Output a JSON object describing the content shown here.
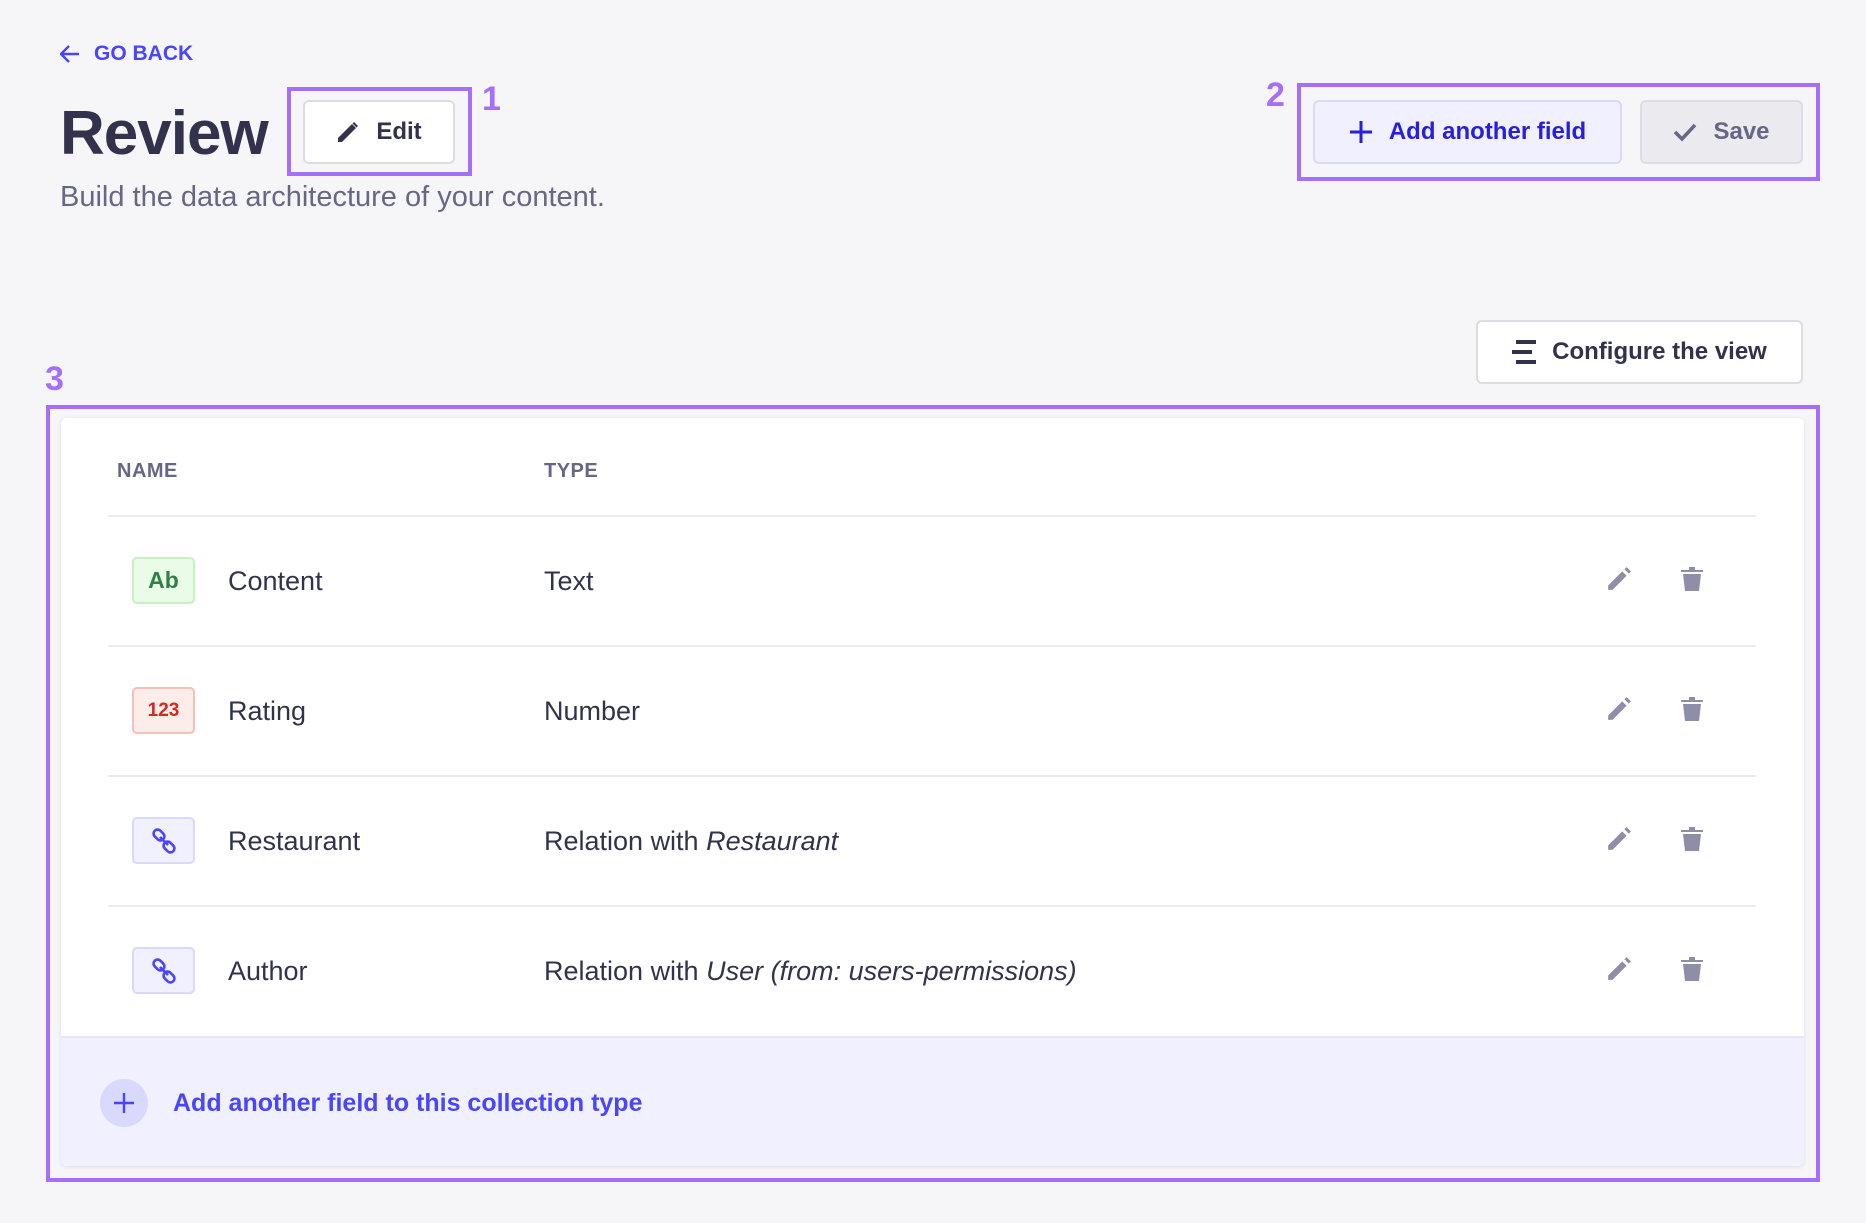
{
  "header": {
    "back_label": "GO BACK",
    "title": "Review",
    "edit_label": "Edit",
    "subtitle": "Build the data architecture of your content.",
    "add_field_label": "Add another field",
    "save_label": "Save",
    "configure_label": "Configure the view"
  },
  "annotations": [
    "1",
    "2",
    "3"
  ],
  "table": {
    "columns": [
      "NAME",
      "TYPE"
    ],
    "rows": [
      {
        "badge": "Ab",
        "badge_kind": "text",
        "name": "Content",
        "type": "Text",
        "type_target": ""
      },
      {
        "badge": "123",
        "badge_kind": "number",
        "name": "Rating",
        "type": "Number",
        "type_target": ""
      },
      {
        "badge": "link-icon",
        "badge_kind": "relation",
        "name": "Restaurant",
        "type": "Relation with ",
        "type_target": "Restaurant"
      },
      {
        "badge": "link-icon",
        "badge_kind": "relation",
        "name": "Author",
        "type": "Relation with ",
        "type_target": "User (from: users-permissions)"
      }
    ],
    "footer_label": "Add another field to this collection type"
  },
  "colors": {
    "primary": "#4945ff",
    "annotation": "#a66ffb",
    "text_badge": "#328048",
    "number_badge": "#d02b20"
  }
}
